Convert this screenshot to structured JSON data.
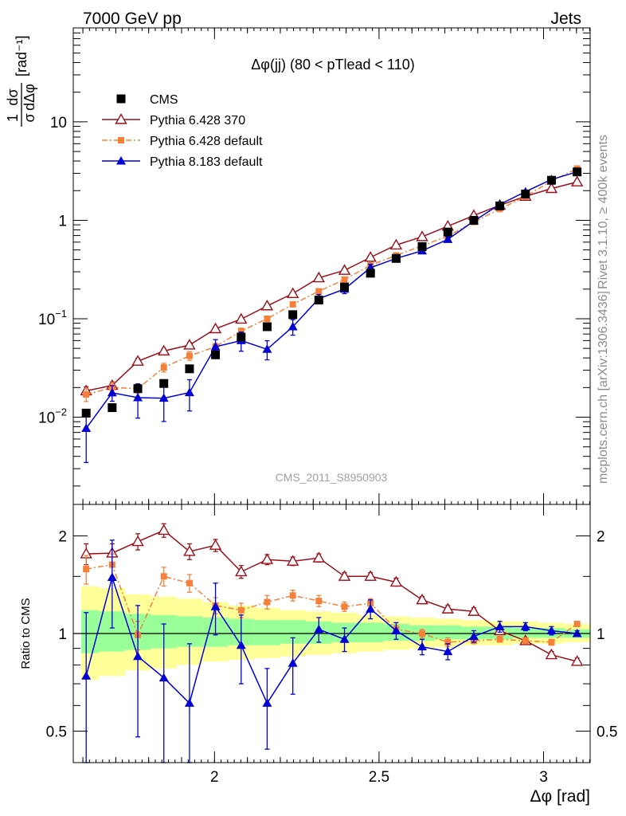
{
  "header": {
    "left": "7000 GeV pp",
    "right": "Jets"
  },
  "side_labels": {
    "rivet": "Rivet 3.1.10, ≥ 400k events",
    "site": "mcplots.cern.ch [arXiv:1306.3436]"
  },
  "watermark": "CMS_2011_S8950903",
  "colors": {
    "cms": "#000000",
    "p6_370": "#990f1a",
    "p6_default": "#f5803a",
    "p8_default": "#0000d4",
    "band_yellow": "#ffff99",
    "band_green": "#99ff99"
  },
  "chart_data": [
    {
      "type": "scatter",
      "panel": "main",
      "title": "Δφ(jj) (80 < pTlead <  110)",
      "xlabel": "Δφ [rad]",
      "ylabel": "1/σ dσ/dΔφ [rad⁻¹]",
      "ylabel_parts": {
        "num": "1",
        "den": "σ",
        "frac_num": "dσ",
        "frac_den": "dΔφ",
        "unit": "[rad⁻¹]"
      },
      "yscale": "log",
      "xlim": [
        1.5708,
        3.1416
      ],
      "ylim": [
        0.0013,
        90
      ],
      "yticks": [
        {
          "value": 0.01,
          "base": "10",
          "exp": "−2"
        },
        {
          "value": 0.1,
          "base": "10",
          "exp": "−1"
        },
        {
          "value": 1,
          "base": "1",
          "exp": ""
        },
        {
          "value": 10,
          "base": "10",
          "exp": ""
        }
      ],
      "x": [
        1.61,
        1.689,
        1.767,
        1.846,
        1.924,
        2.003,
        2.081,
        2.16,
        2.238,
        2.317,
        2.395,
        2.474,
        2.552,
        2.631,
        2.709,
        2.788,
        2.867,
        2.945,
        3.024,
        3.102
      ],
      "series": [
        {
          "name": "CMS",
          "key": "cms",
          "marker": "square",
          "values": [
            0.011,
            0.0125,
            0.0195,
            0.022,
            0.031,
            0.043,
            0.065,
            0.083,
            0.11,
            0.155,
            0.21,
            0.29,
            0.41,
            0.54,
            0.76,
            1.0,
            1.4,
            1.85,
            2.55,
            3.1
          ]
        },
        {
          "name": "Pythia 6.428 370",
          "key": "p6_370",
          "marker": "triangle-open",
          "values": [
            0.0185,
            0.021,
            0.037,
            0.047,
            0.054,
            0.079,
            0.099,
            0.135,
            0.18,
            0.26,
            0.31,
            0.42,
            0.56,
            0.68,
            0.87,
            1.12,
            1.42,
            1.75,
            2.1,
            2.45
          ]
        },
        {
          "name": "Pythia 6.428 default",
          "key": "p6_default",
          "marker": "square-small",
          "dash": "dashdot",
          "values": [
            0.017,
            0.02,
            0.0195,
            0.032,
            0.042,
            0.052,
            0.075,
            0.1,
            0.14,
            0.19,
            0.25,
            0.35,
            0.44,
            0.55,
            0.69,
            0.96,
            1.3,
            1.75,
            2.5,
            3.35
          ]
        },
        {
          "name": "Pythia 8.183 default",
          "key": "p8_default",
          "marker": "triangle-filled",
          "values": [
            0.0077,
            0.0177,
            0.0158,
            0.0156,
            0.0178,
            0.052,
            0.06,
            0.049,
            0.083,
            0.16,
            0.2,
            0.33,
            0.41,
            0.49,
            0.64,
            0.98,
            1.45,
            1.95,
            2.6,
            3.1
          ]
        }
      ],
      "errors_relative": {
        "p8_default": [
          0.55,
          0.18,
          0.38,
          0.42,
          0.35,
          0.18,
          0.22,
          0.22,
          0.18,
          0.1,
          0.1,
          0.08,
          0.06,
          0.06,
          0.06,
          0.04,
          0.04,
          0.03,
          0.03,
          0.02
        ],
        "p6_default": [
          0.15,
          0.12,
          0.1,
          0.1,
          0.1,
          0.08,
          0.07,
          0.06,
          0.05,
          0.05,
          0.04,
          0.04,
          0.04,
          0.04,
          0.03,
          0.03,
          0.03,
          0.02,
          0.02,
          0.02
        ],
        "p6_370": [
          0.1,
          0.08,
          0.07,
          0.06,
          0.06,
          0.05,
          0.05,
          0.04,
          0.04,
          0.03,
          0.03,
          0.03,
          0.03,
          0.03,
          0.02,
          0.02,
          0.02,
          0.02,
          0.02,
          0.02
        ]
      }
    },
    {
      "type": "line",
      "panel": "ratio",
      "xlabel": "Δφ [rad]",
      "ylabel": "Ratio to CMS",
      "yscale": "log",
      "xlim": [
        1.5708,
        3.1416
      ],
      "ylim": [
        0.4,
        2.5
      ],
      "yticks": [
        {
          "value": 0.5,
          "label": "0.5"
        },
        {
          "value": 1,
          "label": "1"
        },
        {
          "value": 2,
          "label": "2"
        }
      ],
      "xticks": [
        {
          "value": 2,
          "label": "2"
        },
        {
          "value": 2.5,
          "label": "2.5"
        },
        {
          "value": 3,
          "label": "3"
        }
      ],
      "x": [
        1.61,
        1.689,
        1.767,
        1.846,
        1.924,
        2.003,
        2.081,
        2.16,
        2.238,
        2.317,
        2.395,
        2.474,
        2.552,
        2.631,
        2.709,
        2.788,
        2.867,
        2.945,
        3.024,
        3.102
      ],
      "bin_edges": [
        1.5708,
        1.6493,
        1.7279,
        1.8064,
        1.885,
        1.9635,
        2.042,
        2.1206,
        2.1991,
        2.2777,
        2.3562,
        2.4347,
        2.5133,
        2.5918,
        2.6704,
        2.7489,
        2.8274,
        2.906,
        2.9845,
        3.0631,
        3.1416
      ],
      "band_yellow": [
        [
          0.72,
          1.4
        ],
        [
          0.74,
          1.38
        ],
        [
          0.77,
          1.32
        ],
        [
          0.78,
          1.3
        ],
        [
          0.8,
          1.28
        ],
        [
          0.82,
          1.25
        ],
        [
          0.83,
          1.22
        ],
        [
          0.84,
          1.2
        ],
        [
          0.85,
          1.18
        ],
        [
          0.86,
          1.17
        ],
        [
          0.87,
          1.16
        ],
        [
          0.88,
          1.14
        ],
        [
          0.89,
          1.13
        ],
        [
          0.9,
          1.12
        ],
        [
          0.91,
          1.11
        ],
        [
          0.92,
          1.1
        ],
        [
          0.92,
          1.09
        ],
        [
          0.93,
          1.09
        ],
        [
          0.93,
          1.08
        ],
        [
          0.94,
          1.07
        ]
      ],
      "band_green": [
        [
          0.87,
          1.18
        ],
        [
          0.88,
          1.17
        ],
        [
          0.89,
          1.15
        ],
        [
          0.9,
          1.14
        ],
        [
          0.91,
          1.13
        ],
        [
          0.91,
          1.12
        ],
        [
          0.92,
          1.11
        ],
        [
          0.92,
          1.1
        ],
        [
          0.93,
          1.1
        ],
        [
          0.93,
          1.09
        ],
        [
          0.94,
          1.08
        ],
        [
          0.94,
          1.08
        ],
        [
          0.95,
          1.07
        ],
        [
          0.95,
          1.06
        ],
        [
          0.96,
          1.06
        ],
        [
          0.96,
          1.05
        ],
        [
          0.96,
          1.05
        ],
        [
          0.97,
          1.04
        ],
        [
          0.97,
          1.04
        ],
        [
          0.97,
          1.03
        ]
      ],
      "series": [
        {
          "name": "Pythia 6.428 370",
          "key": "p6_370",
          "marker": "triangle-open",
          "values": [
            1.76,
            1.77,
            1.92,
            2.08,
            1.79,
            1.87,
            1.55,
            1.69,
            1.67,
            1.71,
            1.5,
            1.5,
            1.44,
            1.27,
            1.19,
            1.17,
            1.02,
            0.95,
            0.86,
            0.82
          ],
          "err": [
            0.13,
            0.12,
            0.11,
            0.1,
            0.1,
            0.08,
            0.07,
            0.06,
            0.05,
            0.05,
            0.04,
            0.04,
            0.04,
            0.03,
            0.03,
            0.03,
            0.02,
            0.02,
            0.02,
            0.02
          ]
        },
        {
          "name": "Pythia 6.428 default",
          "key": "p6_default",
          "marker": "square-small",
          "dash": "dashdot",
          "values": [
            1.58,
            1.63,
            0.99,
            1.5,
            1.43,
            1.22,
            1.18,
            1.25,
            1.31,
            1.26,
            1.21,
            1.24,
            1.03,
            1.0,
            0.94,
            0.95,
            0.96,
            0.95,
            0.94,
            1.07
          ],
          "err": [
            0.16,
            0.13,
            0.1,
            0.1,
            0.09,
            0.07,
            0.06,
            0.06,
            0.05,
            0.05,
            0.04,
            0.04,
            0.03,
            0.03,
            0.03,
            0.02,
            0.02,
            0.02,
            0.02,
            0.02
          ]
        },
        {
          "name": "Pythia 8.183 default",
          "key": "p8_default",
          "marker": "triangle-filled",
          "values": [
            0.74,
            1.49,
            0.85,
            0.73,
            0.61,
            1.21,
            0.92,
            0.61,
            0.81,
            1.03,
            0.96,
            1.19,
            1.02,
            0.91,
            0.88,
            0.98,
            1.05,
            1.05,
            1.02,
            1.0
          ],
          "err": [
            0.42,
            0.45,
            0.37,
            0.34,
            0.32,
            0.22,
            0.22,
            0.17,
            0.16,
            0.09,
            0.08,
            0.08,
            0.06,
            0.05,
            0.05,
            0.04,
            0.04,
            0.03,
            0.03,
            0.02
          ]
        }
      ]
    }
  ]
}
